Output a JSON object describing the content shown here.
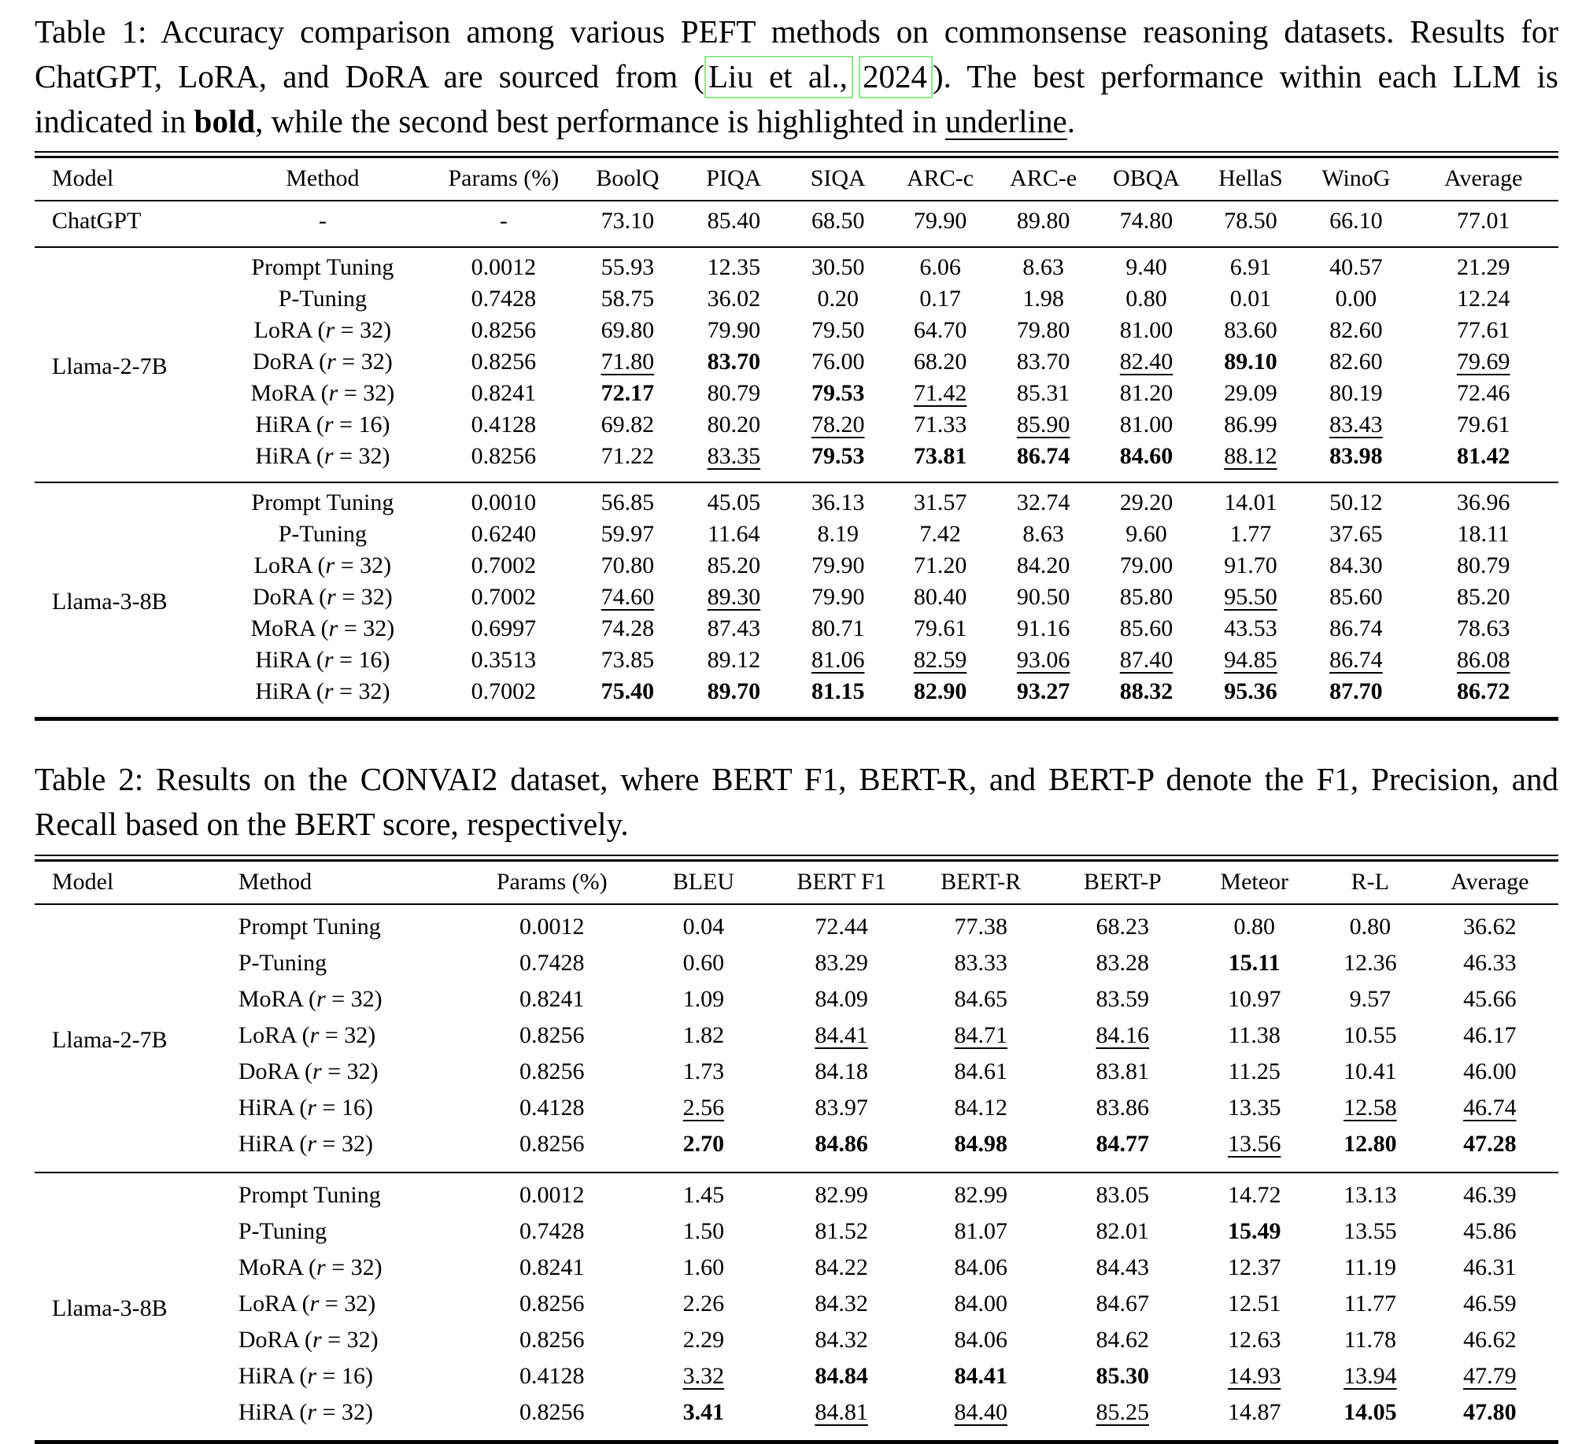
{
  "page": {
    "background": "#ffffff",
    "text_color": "#000000",
    "citation_box_color": "#8ce88c"
  },
  "table1": {
    "caption": {
      "part1": "Table 1: Accuracy comparison among various PEFT methods on commonsense reasoning datasets. Results for ChatGPT, LoRA, and DoRA are sourced from (",
      "cite_author": "Liu et al.,",
      "cite_year": "2024",
      "part2": "). The best performance within each LLM is indicated in ",
      "bold_word": "bold",
      "part3": ", while the second best performance is highlighted in ",
      "underline_word": "underline",
      "part4": "."
    },
    "columns": [
      "Model",
      "Method",
      "Params (%)",
      "BoolQ",
      "PIQA",
      "SIQA",
      "ARC-c",
      "ARC-e",
      "OBQA",
      "HellaS",
      "WinoG",
      "Average"
    ],
    "groups": [
      {
        "model": "ChatGPT",
        "rows": [
          {
            "method": "-",
            "cells": [
              "-",
              "73.10",
              "85.40",
              "68.50",
              "79.90",
              "89.80",
              "74.80",
              "78.50",
              "66.10",
              "77.01"
            ]
          }
        ]
      },
      {
        "model": "Llama-2-7B",
        "rows": [
          {
            "method": "Prompt Tuning",
            "cells": [
              "0.0012",
              "55.93",
              "12.35",
              "30.50",
              "6.06",
              "8.63",
              "9.40",
              "6.91",
              "40.57",
              "21.29"
            ]
          },
          {
            "method": "P-Tuning",
            "cells": [
              "0.7428",
              "58.75",
              "36.02",
              "0.20",
              "0.17",
              "1.98",
              "0.80",
              "0.01",
              "0.00",
              "12.24"
            ]
          },
          {
            "method": "LoRA (r = 32)",
            "cells": [
              "0.8256",
              "69.80",
              "79.90",
              "79.50",
              "64.70",
              "79.80",
              "81.00",
              "83.60",
              "82.60",
              "77.61"
            ]
          },
          {
            "method": "DoRA (r = 32)",
            "cells": [
              "0.8256",
              "u:71.80",
              "b:83.70",
              "76.00",
              "68.20",
              "83.70",
              "u:82.40",
              "b:89.10",
              "82.60",
              "u:79.69"
            ]
          },
          {
            "method": "MoRA (r = 32)",
            "cells": [
              "0.8241",
              "b:72.17",
              "80.79",
              "b:79.53",
              "u:71.42",
              "85.31",
              "81.20",
              "29.09",
              "80.19",
              "72.46"
            ]
          },
          {
            "method": "HiRA (r = 16)",
            "cells": [
              "0.4128",
              "69.82",
              "80.20",
              "u:78.20",
              "71.33",
              "u:85.90",
              "81.00",
              "86.99",
              "u:83.43",
              "79.61"
            ]
          },
          {
            "method": "HiRA (r = 32)",
            "cells": [
              "0.8256",
              "71.22",
              "u:83.35",
              "b:79.53",
              "b:73.81",
              "b:86.74",
              "b:84.60",
              "u:88.12",
              "b:83.98",
              "b:81.42"
            ]
          }
        ]
      },
      {
        "model": "Llama-3-8B",
        "rows": [
          {
            "method": "Prompt Tuning",
            "cells": [
              "0.0010",
              "56.85",
              "45.05",
              "36.13",
              "31.57",
              "32.74",
              "29.20",
              "14.01",
              "50.12",
              "36.96"
            ]
          },
          {
            "method": "P-Tuning",
            "cells": [
              "0.6240",
              "59.97",
              "11.64",
              "8.19",
              "7.42",
              "8.63",
              "9.60",
              "1.77",
              "37.65",
              "18.11"
            ]
          },
          {
            "method": "LoRA (r = 32)",
            "cells": [
              "0.7002",
              "70.80",
              "85.20",
              "79.90",
              "71.20",
              "84.20",
              "79.00",
              "91.70",
              "84.30",
              "80.79"
            ]
          },
          {
            "method": "DoRA (r = 32)",
            "cells": [
              "0.7002",
              "u:74.60",
              "u:89.30",
              "79.90",
              "80.40",
              "90.50",
              "85.80",
              "u:95.50",
              "85.60",
              "85.20"
            ]
          },
          {
            "method": "MoRA (r = 32)",
            "cells": [
              "0.6997",
              "74.28",
              "87.43",
              "80.71",
              "79.61",
              "91.16",
              "85.60",
              "43.53",
              "86.74",
              "78.63"
            ]
          },
          {
            "method": "HiRA (r = 16)",
            "cells": [
              "0.3513",
              "73.85",
              "89.12",
              "u:81.06",
              "u:82.59",
              "u:93.06",
              "u:87.40",
              "u:94.85",
              "u:86.74",
              "u:86.08"
            ]
          },
          {
            "method": "HiRA (r = 32)",
            "cells": [
              "0.7002",
              "b:75.40",
              "b:89.70",
              "b:81.15",
              "b:82.90",
              "b:93.27",
              "b:88.32",
              "b:95.36",
              "b:87.70",
              "b:86.72"
            ]
          }
        ]
      }
    ]
  },
  "table2": {
    "caption": {
      "text": "Table 2: Results on the CONVAI2 dataset, where BERT F1, BERT-R, and BERT-P denote the F1, Precision, and Recall based on the BERT score, respectively."
    },
    "columns": [
      "Model",
      "Method",
      "Params (%)",
      "BLEU",
      "BERT F1",
      "BERT-R",
      "BERT-P",
      "Meteor",
      "R-L",
      "Average"
    ],
    "groups": [
      {
        "model": "Llama-2-7B",
        "rows": [
          {
            "method": "Prompt Tuning",
            "cells": [
              "0.0012",
              "0.04",
              "72.44",
              "77.38",
              "68.23",
              "0.80",
              "0.80",
              "36.62"
            ]
          },
          {
            "method": "P-Tuning",
            "cells": [
              "0.7428",
              "0.60",
              "83.29",
              "83.33",
              "83.28",
              "b:15.11",
              "12.36",
              "46.33"
            ]
          },
          {
            "method": "MoRA (r = 32)",
            "cells": [
              "0.8241",
              "1.09",
              "84.09",
              "84.65",
              "83.59",
              "10.97",
              "9.57",
              "45.66"
            ]
          },
          {
            "method": "LoRA (r = 32)",
            "cells": [
              "0.8256",
              "1.82",
              "u:84.41",
              "u:84.71",
              "u:84.16",
              "11.38",
              "10.55",
              "46.17"
            ]
          },
          {
            "method": "DoRA (r = 32)",
            "cells": [
              "0.8256",
              "1.73",
              "84.18",
              "84.61",
              "83.81",
              "11.25",
              "10.41",
              "46.00"
            ]
          },
          {
            "method": "HiRA (r = 16)",
            "cells": [
              "0.4128",
              "u:2.56",
              "83.97",
              "84.12",
              "83.86",
              "13.35",
              "u:12.58",
              "u:46.74"
            ]
          },
          {
            "method": "HiRA (r = 32)",
            "cells": [
              "0.8256",
              "b:2.70",
              "b:84.86",
              "b:84.98",
              "b:84.77",
              "u:13.56",
              "b:12.80",
              "b:47.28"
            ]
          }
        ]
      },
      {
        "model": "Llama-3-8B",
        "rows": [
          {
            "method": "Prompt Tuning",
            "cells": [
              "0.0012",
              "1.45",
              "82.99",
              "82.99",
              "83.05",
              "14.72",
              "13.13",
              "46.39"
            ]
          },
          {
            "method": "P-Tuning",
            "cells": [
              "0.7428",
              "1.50",
              "81.52",
              "81.07",
              "82.01",
              "b:15.49",
              "13.55",
              "45.86"
            ]
          },
          {
            "method": "MoRA (r = 32)",
            "cells": [
              "0.8241",
              "1.60",
              "84.22",
              "84.06",
              "84.43",
              "12.37",
              "11.19",
              "46.31"
            ]
          },
          {
            "method": "LoRA (r = 32)",
            "cells": [
              "0.8256",
              "2.26",
              "84.32",
              "84.00",
              "84.67",
              "12.51",
              "11.77",
              "46.59"
            ]
          },
          {
            "method": "DoRA (r = 32)",
            "cells": [
              "0.8256",
              "2.29",
              "84.32",
              "84.06",
              "84.62",
              "12.63",
              "11.78",
              "46.62"
            ]
          },
          {
            "method": "HiRA (r = 16)",
            "cells": [
              "0.4128",
              "u:3.32",
              "b:84.84",
              "b:84.41",
              "b:85.30",
              "u:14.93",
              "u:13.94",
              "u:47.79"
            ]
          },
          {
            "method": "HiRA (r = 32)",
            "cells": [
              "0.8256",
              "b:3.41",
              "u:84.81",
              "u:84.40",
              "u:85.25",
              "14.87",
              "b:14.05",
              "b:47.80"
            ]
          }
        ]
      }
    ]
  }
}
